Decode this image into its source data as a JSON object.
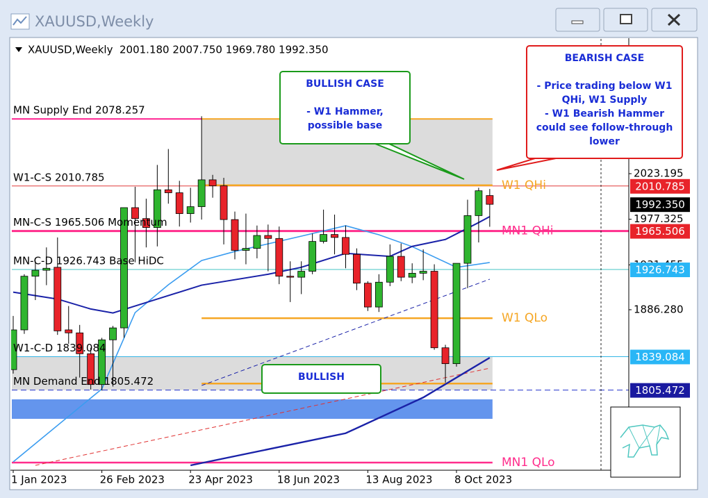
{
  "chart_data": {
    "type": "candlestick",
    "window_title": "XAUUSD,Weekly",
    "header": "XAUUSD,Weekly  2001.180 2007.750 1969.780 1992.350",
    "categories": [
      "1 Jan 2023",
      null,
      null,
      null,
      null,
      null,
      null,
      null,
      "26 Feb 2023",
      null,
      null,
      null,
      null,
      null,
      null,
      null,
      "23 Apr 2023",
      null,
      null,
      null,
      null,
      null,
      null,
      null,
      "18 Jun 2023",
      null,
      null,
      null,
      null,
      null,
      null,
      null,
      "13 Aug 2023",
      null,
      null,
      null,
      null,
      null,
      null,
      null,
      "8 Oct 2023",
      null,
      null,
      null
    ],
    "open": [
      1826,
      1866,
      1920,
      1926,
      1929,
      1866,
      1863,
      1842,
      1811,
      1856,
      1868,
      1989,
      1978,
      1969,
      2007,
      2004,
      1983,
      1990,
      2017,
      2011,
      1977,
      1946,
      1948,
      1961,
      1958,
      1920,
      1919,
      1925,
      1955,
      1962,
      1959,
      1942,
      1913,
      1889,
      1914,
      1940,
      1919,
      1923,
      1925,
      1848,
      1832,
      1933,
      1981,
      2001.18
    ],
    "high": [
      1880,
      1922,
      1935,
      1949,
      1959,
      1890,
      1871,
      1848,
      1858,
      1870,
      1989,
      2010,
      1998,
      2032,
      2048,
      2016,
      2009,
      2081,
      2022,
      2019,
      1985,
      1983,
      1971,
      1972,
      1970,
      1935,
      1935,
      1963,
      1987,
      1982,
      1971,
      1948,
      1915,
      1922,
      1952,
      1953,
      1933,
      1947,
      1932,
      1851,
      1933,
      1997,
      2009,
      2007.75
    ],
    "low": [
      1822,
      1862,
      1896,
      1911,
      1861,
      1852,
      1818,
      1806,
      1805,
      1809,
      1858,
      1934,
      1949,
      1950,
      1993,
      1970,
      1974,
      1977,
      1999,
      1952,
      1937,
      1932,
      1938,
      1925,
      1912,
      1894,
      1902,
      1922,
      1953,
      1942,
      1928,
      1906,
      1885,
      1884,
      1910,
      1915,
      1913,
      1916,
      1846,
      1813,
      1829,
      1908,
      1954,
      1969.78
    ],
    "close": [
      1866,
      1920,
      1926,
      1928,
      1865,
      1863,
      1842,
      1811,
      1856,
      1868,
      1989,
      1978,
      1969,
      2007,
      2004,
      1983,
      1990,
      2017,
      2011,
      1977,
      1946,
      1948,
      1961,
      1958,
      1920,
      1919,
      1925,
      1955,
      1962,
      1959,
      1942,
      1913,
      1889,
      1914,
      1940,
      1919,
      1923,
      1925,
      1848,
      1832,
      1933,
      1981,
      2006,
      1992.35
    ],
    "up_color": "#2fb52f",
    "down_color": "#e8232a",
    "ylim": [
      1724.8,
      2159.5
    ],
    "yticks": [
      2023.195,
      1977.325,
      1931.455,
      {
        "value": 1886.28,
        "label": "1886.280"
      }
    ],
    "overlays": [
      {
        "color": "#3a9cf0",
        "width": 1.6,
        "dashed": false,
        "points": [
          [
            0,
            1733.2
          ],
          [
            8,
            1806.6
          ],
          [
            11,
            1883.4
          ],
          [
            14,
            1911.4
          ],
          [
            17,
            1935.8
          ],
          [
            20,
            1944.9
          ],
          [
            26,
            1960.3
          ],
          [
            30,
            1970.8
          ],
          [
            33,
            1961.7
          ],
          [
            36,
            1949.8
          ],
          [
            40,
            1928.9
          ],
          [
            43,
            1933.8
          ]
        ]
      },
      {
        "color": "#1a22a8",
        "width": 2,
        "dashed": false,
        "points": [
          [
            0,
            1904
          ],
          [
            4,
            1897
          ],
          [
            7,
            1887
          ],
          [
            9,
            1883
          ],
          [
            13,
            1897
          ],
          [
            17,
            1911
          ],
          [
            23,
            1922
          ],
          [
            26,
            1929
          ],
          [
            30,
            1943
          ],
          [
            34,
            1940
          ],
          [
            36,
            1950
          ],
          [
            39,
            1957
          ],
          [
            42,
            1974
          ],
          [
            43,
            1980
          ]
        ]
      },
      {
        "color": "#1a22a8",
        "width": 1,
        "dashed": true,
        "points": [
          [
            17,
            1810
          ],
          [
            43,
            1917
          ]
        ]
      },
      {
        "color": "#e03030",
        "width": 1,
        "dashed": true,
        "points": [
          [
            2,
            1729.7
          ],
          [
            43,
            1827.5
          ]
        ]
      },
      {
        "color": "#1a22a8",
        "width": 2.4,
        "dashed": false,
        "points": [
          [
            16,
            1729.7
          ],
          [
            30,
            1762
          ],
          [
            37,
            1798
          ],
          [
            43,
            1838
          ]
        ]
      }
    ],
    "zones": [
      {
        "from": 17,
        "to": 43,
        "top": 2078.257,
        "bottom": 2010.785,
        "color": "#dcdcdc",
        "border": "#f5a623"
      },
      {
        "from": 0,
        "to": 43,
        "top": 1839.084,
        "bottom": 1805.472,
        "color": "#dcdcdc"
      },
      {
        "from": 0,
        "to": 43,
        "top": 1796.1,
        "bottom": 1776.5,
        "color": "#6495ed"
      }
    ],
    "levels": [
      {
        "value": 2078.257,
        "text": "MN Supply End 2078.257",
        "color": "#ff1f8f",
        "width": 2,
        "to": 17
      },
      {
        "value": 2010.785,
        "text": "W1-C-S 2010.785",
        "color": "#e03a3a",
        "width": 1
      },
      {
        "value": 1965.506,
        "text": "MN-C-S 1965.506 Momentum",
        "color": "#ff2d8c",
        "width": 3
      },
      {
        "value": 1926.743,
        "text": "MN-C-D 1926.743 Base HiDC",
        "color": "#44c4c4",
        "width": 1
      },
      {
        "value": 1839.084,
        "text": "W1-C-D 1839.084",
        "color": "#33b5e5",
        "width": 1
      },
      {
        "value": 1805.472,
        "text": "MN Demand End 1805.472",
        "color": "#2233cc",
        "width": 1,
        "dashed": true
      }
    ],
    "quarter_levels": [
      {
        "value": 2011.5,
        "text": "W1 QHi",
        "color": "#f5a623",
        "from": 17
      },
      {
        "value": 1965.506,
        "text": "MN1 QHi",
        "color": "#ff2d8c",
        "from": 43
      },
      {
        "value": 1877.8,
        "text": "W1 QLo",
        "color": "#f5a623",
        "from": 17
      },
      {
        "value": 1812,
        "color": "#f5a623",
        "from": 17
      },
      {
        "value": 1732.5,
        "text": "MN1 QLo",
        "color": "#ff2d8c",
        "from": 0
      }
    ],
    "price_labels": [
      {
        "value": 2010.785,
        "color": "#e8232a"
      },
      {
        "value": 1992.35,
        "label": "1992.350",
        "color": "#000000"
      },
      {
        "value": 1965.506,
        "color": "#e8232a"
      },
      {
        "value": 1926.743,
        "color": "#29b6f6"
      },
      {
        "value": 1839.084,
        "color": "#29b6f6"
      },
      {
        "value": 1805.472,
        "color": "#1a1aa0"
      }
    ],
    "annotations": [
      {
        "lines": [
          "BULLISH CASE",
          "- W1 Hammer,",
          "possible base"
        ],
        "border": "#1a9a1a"
      },
      {
        "lines": [
          "BEARISH CASE",
          "- Price trading below W1",
          "QHi, W1 Supply",
          "- W1 Bearish Hammer",
          "could see follow-through",
          "lower"
        ],
        "border": "#e01b1b"
      },
      {
        "lines": [
          "BULLISH"
        ],
        "border": "#1a9a1a"
      }
    ]
  }
}
